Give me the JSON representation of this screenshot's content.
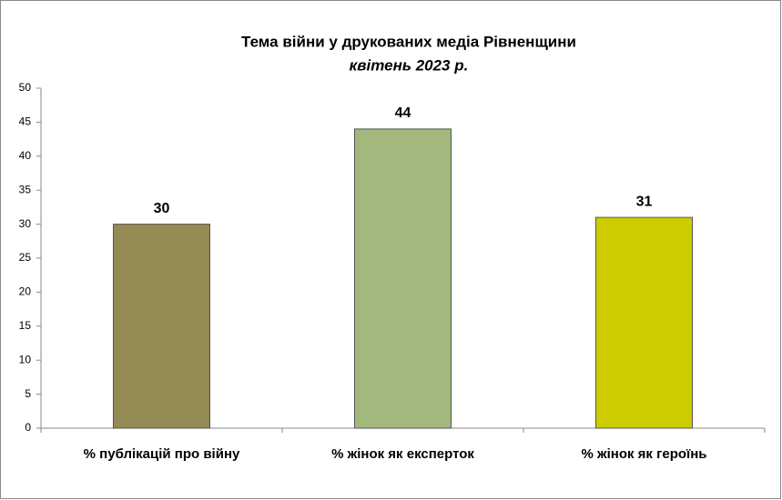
{
  "chart_data": {
    "type": "bar",
    "title": "Тема війни у друкованих  медіа Рівненщини",
    "subtitle": "квітень 2023 р.",
    "categories": [
      "% публікацій про війну",
      "% жінок як експерток",
      "% жінок як героїнь"
    ],
    "values": [
      30,
      44,
      31
    ],
    "colors": [
      "#948a54",
      "#a2b87c",
      "#cccc00"
    ],
    "ylim": [
      0,
      50
    ],
    "yticks": [
      0,
      5,
      10,
      15,
      20,
      25,
      30,
      35,
      40,
      45,
      50
    ],
    "grid": false
  }
}
